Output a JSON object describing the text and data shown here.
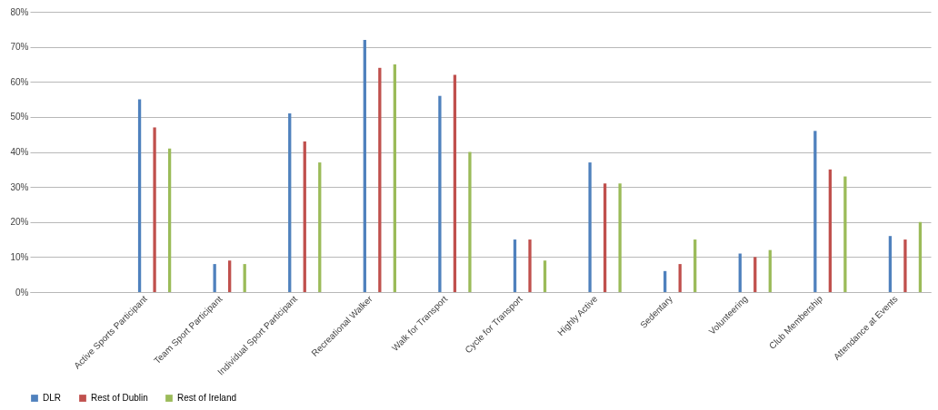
{
  "chart_data": {
    "type": "bar",
    "categories": [
      null,
      "Active Sports Participant",
      "Team Sport Participant",
      "Individual Sport Participant",
      "Recreational Walker",
      "Walk for Transport",
      "Cycle for Transport",
      "Highly Active",
      "Sedentary",
      "Volunteering",
      "Club Membership",
      "Attendance at Events"
    ],
    "series": [
      {
        "name": "DLR",
        "color": "#4f81bd",
        "values": [
          null,
          55,
          8,
          51,
          72,
          56,
          15,
          37,
          6,
          11,
          46,
          16
        ]
      },
      {
        "name": "Rest of Dublin",
        "color": "#c0504d",
        "values": [
          null,
          47,
          9,
          43,
          64,
          62,
          15,
          31,
          8,
          10,
          35,
          15
        ]
      },
      {
        "name": "Rest of Ireland",
        "color": "#9bbb59",
        "values": [
          null,
          41,
          8,
          37,
          65,
          40,
          9,
          31,
          15,
          12,
          33,
          20
        ]
      }
    ],
    "ylim": [
      0,
      80
    ],
    "yticks": [
      {
        "value": 0,
        "label": "0%"
      },
      {
        "value": 10,
        "label": "10%"
      },
      {
        "value": 20,
        "label": "20%"
      },
      {
        "value": 30,
        "label": "30%"
      },
      {
        "value": 40,
        "label": "40%"
      },
      {
        "value": 50,
        "label": "50%"
      },
      {
        "value": 60,
        "label": "60%"
      },
      {
        "value": 70,
        "label": "70%"
      },
      {
        "value": 80,
        "label": "80%"
      }
    ],
    "grid": "y",
    "legend": "bottom"
  }
}
